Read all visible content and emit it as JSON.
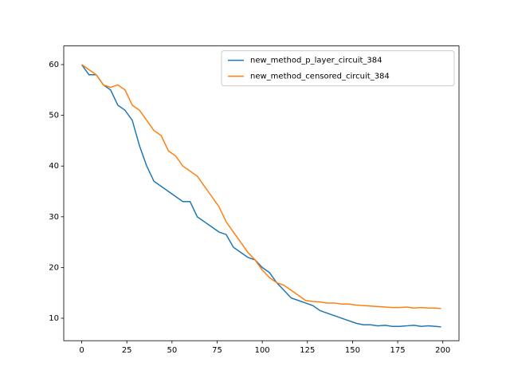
{
  "chart_data": {
    "type": "line",
    "x": [
      0,
      4,
      8,
      12,
      16,
      20,
      24,
      28,
      32,
      36,
      40,
      44,
      48,
      52,
      56,
      60,
      64,
      68,
      72,
      76,
      80,
      84,
      88,
      92,
      96,
      100,
      104,
      108,
      112,
      116,
      120,
      124,
      128,
      132,
      136,
      140,
      144,
      148,
      152,
      156,
      160,
      164,
      168,
      172,
      176,
      180,
      184,
      188,
      192,
      196,
      199
    ],
    "series": [
      {
        "name": "new_method_p_layer_circuit_384",
        "color": "#1f77b4",
        "values": [
          60,
          58,
          58,
          56,
          55,
          52,
          51,
          49,
          44,
          40,
          37,
          36,
          35,
          34,
          33,
          33,
          30,
          29,
          28,
          27,
          26.5,
          24,
          23,
          22,
          21.5,
          20,
          19,
          17,
          15.5,
          14,
          13.5,
          13,
          12.5,
          11.5,
          11,
          10.5,
          10,
          9.5,
          9,
          8.7,
          8.7,
          8.5,
          8.6,
          8.4,
          8.4,
          8.5,
          8.6,
          8.4,
          8.5,
          8.4,
          8.3
        ]
      },
      {
        "name": "new_method_censored_circuit_384",
        "color": "#ff7f0e",
        "values": [
          60,
          59,
          58,
          56,
          55.5,
          56,
          55,
          52,
          51,
          49,
          47,
          46,
          43,
          42,
          40,
          39,
          38,
          36,
          34,
          32,
          29,
          27,
          25,
          23,
          21.5,
          19.5,
          18,
          17,
          16.5,
          15.5,
          14.5,
          13.5,
          13.3,
          13.2,
          13,
          13,
          12.8,
          12.8,
          12.6,
          12.5,
          12.4,
          12.3,
          12.2,
          12.1,
          12.1,
          12.2,
          12,
          12.1,
          12,
          12,
          11.9
        ]
      }
    ],
    "xlim": [
      -9.95,
      208.95
    ],
    "ylim": [
      5.57,
      63.68
    ],
    "xticks": [
      0,
      25,
      50,
      75,
      100,
      125,
      150,
      175,
      200
    ],
    "yticks": [
      10,
      20,
      30,
      40,
      50,
      60
    ],
    "legend": "upper right"
  }
}
